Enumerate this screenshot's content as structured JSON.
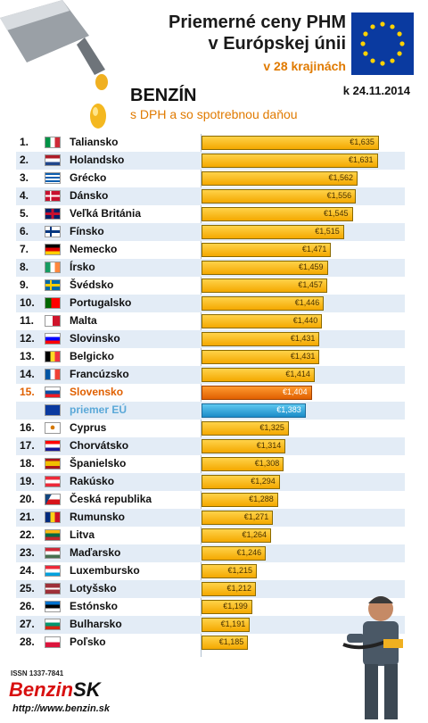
{
  "header": {
    "title_line1": "Priemerné ceny PHM",
    "title_line2": "v Európskej únii",
    "subtitle": "v 28 krajinách",
    "date": "k 24.11.2014",
    "fuel": "BENZÍN",
    "fuel_sub": "s DPH a so spotrebnou daňou"
  },
  "footer": {
    "issn": "ISSN 1337-7841",
    "logo_red": "Benzin",
    "logo_black": "SK",
    "url": "http://www.benzin.sk"
  },
  "colors": {
    "bar": "#f4a800",
    "highlight": "#e06000",
    "eu_average": "#1b8cc8"
  },
  "chart_data": {
    "type": "bar",
    "orientation": "horizontal",
    "title": "Priemerné ceny PHM v Európskej únii",
    "xlim": [
      0,
      1.7
    ],
    "rows": [
      {
        "rank": "1.",
        "country": "Taliansko",
        "value": 1.635,
        "label": "€1,635",
        "flag": "italy-flag"
      },
      {
        "rank": "2.",
        "country": "Holandsko",
        "value": 1.631,
        "label": "€1,631",
        "flag": "netherlands-flag"
      },
      {
        "rank": "3.",
        "country": "Grécko",
        "value": 1.562,
        "label": "€1,562",
        "flag": "greece-flag"
      },
      {
        "rank": "4.",
        "country": "Dánsko",
        "value": 1.556,
        "label": "€1,556",
        "flag": "denmark-flag"
      },
      {
        "rank": "5.",
        "country": "Veľká Británia",
        "value": 1.545,
        "label": "€1,545",
        "flag": "uk-flag"
      },
      {
        "rank": "6.",
        "country": "Fínsko",
        "value": 1.515,
        "label": "€1,515",
        "flag": "finland-flag"
      },
      {
        "rank": "7.",
        "country": "Nemecko",
        "value": 1.471,
        "label": "€1,471",
        "flag": "germany-flag"
      },
      {
        "rank": "8.",
        "country": "Írsko",
        "value": 1.459,
        "label": "€1,459",
        "flag": "ireland-flag"
      },
      {
        "rank": "9.",
        "country": "Švédsko",
        "value": 1.457,
        "label": "€1,457",
        "flag": "sweden-flag"
      },
      {
        "rank": "10.",
        "country": "Portugalsko",
        "value": 1.446,
        "label": "€1,446",
        "flag": "portugal-flag"
      },
      {
        "rank": "11.",
        "country": "Malta",
        "value": 1.44,
        "label": "€1,440",
        "flag": "malta-flag"
      },
      {
        "rank": "12.",
        "country": "Slovinsko",
        "value": 1.431,
        "label": "€1,431",
        "flag": "slovenia-flag"
      },
      {
        "rank": "13.",
        "country": "Belgicko",
        "value": 1.431,
        "label": "€1,431",
        "flag": "belgium-flag"
      },
      {
        "rank": "14.",
        "country": "Francúzsko",
        "value": 1.414,
        "label": "€1,414",
        "flag": "france-flag"
      },
      {
        "rank": "15.",
        "country": "Slovensko",
        "value": 1.404,
        "label": "€1,404",
        "flag": "slovakia-flag",
        "highlight": true
      },
      {
        "rank": "",
        "country": "priemer EÚ",
        "value": 1.383,
        "label": "€1,383",
        "flag": "eu-flag",
        "eu": true
      },
      {
        "rank": "16.",
        "country": "Cyprus",
        "value": 1.325,
        "label": "€1,325",
        "flag": "cyprus-flag"
      },
      {
        "rank": "17.",
        "country": "Chorvátsko",
        "value": 1.314,
        "label": "€1,314",
        "flag": "croatia-flag"
      },
      {
        "rank": "18.",
        "country": "Španielsko",
        "value": 1.308,
        "label": "€1,308",
        "flag": "spain-flag"
      },
      {
        "rank": "19.",
        "country": "Rakúsko",
        "value": 1.294,
        "label": "€1,294",
        "flag": "austria-flag"
      },
      {
        "rank": "20.",
        "country": "Česká republika",
        "value": 1.288,
        "label": "€1,288",
        "flag": "czech-flag"
      },
      {
        "rank": "21.",
        "country": "Rumunsko",
        "value": 1.271,
        "label": "€1,271",
        "flag": "romania-flag"
      },
      {
        "rank": "22.",
        "country": "Litva",
        "value": 1.264,
        "label": "€1,264",
        "flag": "lithuania-flag"
      },
      {
        "rank": "23.",
        "country": "Maďarsko",
        "value": 1.246,
        "label": "€1,246",
        "flag": "hungary-flag"
      },
      {
        "rank": "24.",
        "country": "Luxembursko",
        "value": 1.215,
        "label": "€1,215",
        "flag": "luxembourg-flag"
      },
      {
        "rank": "25.",
        "country": "Lotyšsko",
        "value": 1.212,
        "label": "€1,212",
        "flag": "latvia-flag"
      },
      {
        "rank": "26.",
        "country": "Estónsko",
        "value": 1.199,
        "label": "€1,199",
        "flag": "estonia-flag"
      },
      {
        "rank": "27.",
        "country": "Bulharsko",
        "value": 1.191,
        "label": "€1,191",
        "flag": "bulgaria-flag"
      },
      {
        "rank": "28.",
        "country": "Poľsko",
        "value": 1.185,
        "label": "€1,185",
        "flag": "poland-flag"
      }
    ]
  }
}
